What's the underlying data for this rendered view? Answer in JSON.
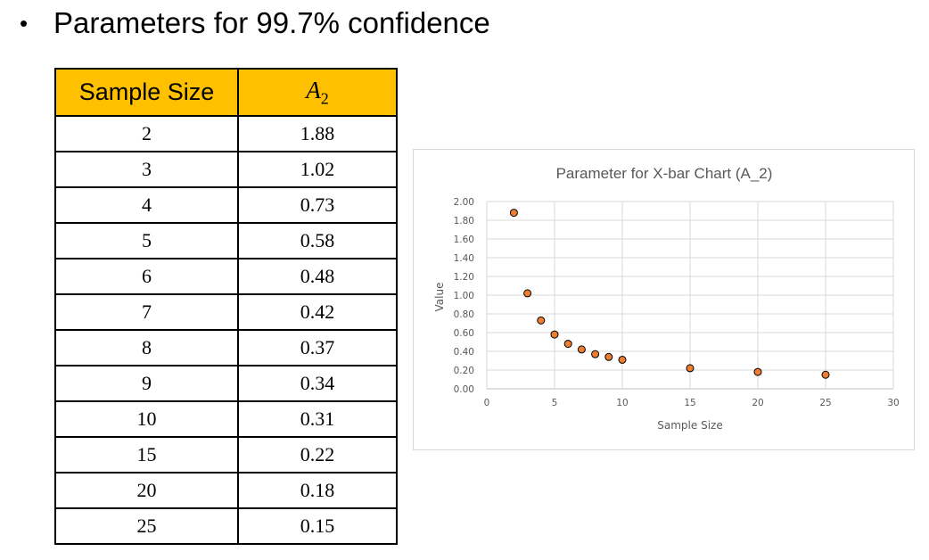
{
  "heading": {
    "bullet": "•",
    "text": "Parameters for 99.7% confidence"
  },
  "table": {
    "header_sample_size": "Sample Size",
    "header_a2_symbol": "A",
    "header_a2_subscript": "2",
    "header_color": "#FFC000",
    "rows": [
      {
        "n": "2",
        "a2": "1.88"
      },
      {
        "n": "3",
        "a2": "1.02"
      },
      {
        "n": "4",
        "a2": "0.73"
      },
      {
        "n": "5",
        "a2": "0.58"
      },
      {
        "n": "6",
        "a2": "0.48"
      },
      {
        "n": "7",
        "a2": "0.42"
      },
      {
        "n": "8",
        "a2": "0.37"
      },
      {
        "n": "9",
        "a2": "0.34"
      },
      {
        "n": "10",
        "a2": "0.31"
      },
      {
        "n": "15",
        "a2": "0.22"
      },
      {
        "n": "20",
        "a2": "0.18"
      },
      {
        "n": "25",
        "a2": "0.15"
      }
    ]
  },
  "chart_data": {
    "type": "scatter",
    "title": "Parameter for X-bar Chart (A_2)",
    "xlabel": "Sample Size",
    "ylabel": "Value",
    "xlim": [
      0,
      30
    ],
    "ylim": [
      0,
      2
    ],
    "x_ticks": [
      "0",
      "5",
      "10",
      "15",
      "20",
      "25",
      "30"
    ],
    "y_ticks": [
      "0.00",
      "0.20",
      "0.40",
      "0.60",
      "0.80",
      "1.00",
      "1.20",
      "1.40",
      "1.60",
      "1.80",
      "2.00"
    ],
    "grid": true,
    "legend": "none",
    "marker_color": "#ED7D31",
    "series": [
      {
        "x": [
          2,
          3,
          4,
          5,
          6,
          7,
          8,
          9,
          10,
          15,
          20,
          25
        ],
        "y": [
          1.88,
          1.02,
          0.73,
          0.58,
          0.48,
          0.42,
          0.37,
          0.34,
          0.31,
          0.22,
          0.18,
          0.15
        ]
      }
    ]
  }
}
